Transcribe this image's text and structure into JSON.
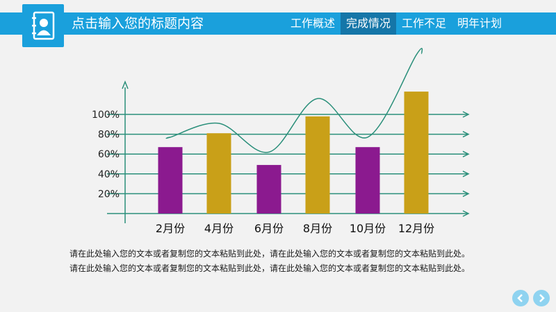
{
  "header": {
    "title": "点击输入您的标题内容",
    "tabs": [
      {
        "label": "工作概述",
        "active": false
      },
      {
        "label": "完成情况",
        "active": true
      },
      {
        "label": "工作不足",
        "active": false
      },
      {
        "label": "明年计划",
        "active": false
      }
    ]
  },
  "chart_data": {
    "type": "bar",
    "categories": [
      "2月份",
      "4月份",
      "6月份",
      "8月份",
      "10月份",
      "12月份"
    ],
    "values": [
      67,
      81,
      49,
      98,
      67,
      123
    ],
    "colors": [
      "#8b1a8f",
      "#c9a018",
      "#8b1a8f",
      "#c9a018",
      "#8b1a8f",
      "#c9a018"
    ],
    "yticks": [
      "20%",
      "40%",
      "60%",
      "80%",
      "100%"
    ],
    "ytick_values": [
      20,
      40,
      60,
      80,
      100
    ],
    "trend_line": [
      77,
      91,
      62,
      116,
      77,
      160
    ],
    "grid_color": "#2a8f7a"
  },
  "paragraphs": [
    "请在此处输入您的文本或者复制您的文本粘贴到此处，请在此处输入您的文本或者复制您的文本粘贴到此处。",
    "请在此处输入您的文本或者复制您的文本粘贴到此处，请在此处输入您的文本或者复制您的文本粘贴到此处。"
  ],
  "nav": {
    "prev_icon": "chevron-left-icon",
    "next_icon": "chevron-right-icon"
  }
}
